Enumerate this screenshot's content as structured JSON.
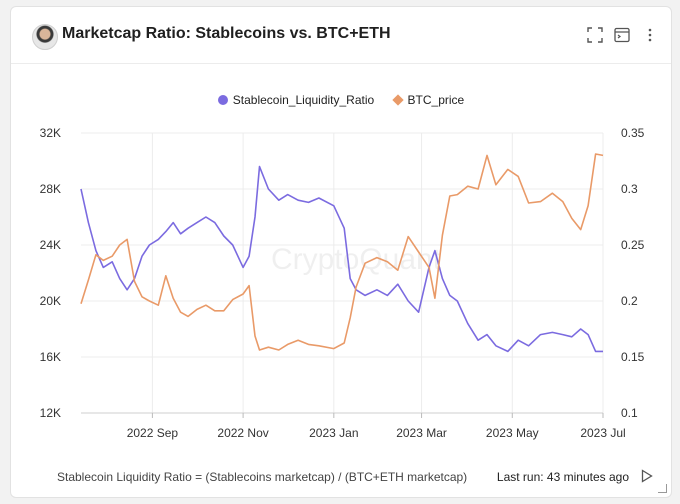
{
  "header": {
    "title": "Marketcap Ratio: Stablecoins vs. BTC+ETH"
  },
  "footer": {
    "note": "Stablecoin Liquidity Ratio = (Stablecoins marketcap) / (BTC+ETH marketcap)",
    "last_run": "Last run: 43 minutes ago"
  },
  "watermark": "CryptoQuant",
  "colors": {
    "ratio": "#7b6be0",
    "btc": "#e99a68"
  },
  "icons": [
    "avatar",
    "fullscreen-icon",
    "console-icon",
    "more-icon",
    "play-icon"
  ],
  "chart_data": {
    "type": "line",
    "legend_position": "top",
    "grid": true,
    "x_ticks": [
      "2022 Sep",
      "2022 Nov",
      "2023 Jan",
      "2023 Mar",
      "2023 May",
      "2023 Jul"
    ],
    "y_left": {
      "ticks": [
        "12K",
        "16K",
        "20K",
        "24K",
        "28K",
        "32K"
      ],
      "range": [
        12000,
        32000
      ]
    },
    "y_right": {
      "ticks": [
        "0.1",
        "0.15",
        "0.2",
        "0.25",
        "0.3",
        "0.35"
      ],
      "range": [
        0.1,
        0.35
      ]
    },
    "x_range": [
      "2022-07-15",
      "2023-07-01"
    ],
    "series": [
      {
        "name": "Stablecoin_Liquidity_Ratio",
        "axis": "right",
        "x": [
          "2022-07-15",
          "2022-07-20",
          "2022-07-25",
          "2022-07-30",
          "2022-08-05",
          "2022-08-10",
          "2022-08-15",
          "2022-08-20",
          "2022-08-25",
          "2022-08-30",
          "2022-09-05",
          "2022-09-10",
          "2022-09-15",
          "2022-09-20",
          "2022-09-25",
          "2022-10-01",
          "2022-10-07",
          "2022-10-13",
          "2022-10-19",
          "2022-10-25",
          "2022-11-01",
          "2022-11-05",
          "2022-11-09",
          "2022-11-12",
          "2022-11-18",
          "2022-11-25",
          "2022-12-01",
          "2022-12-08",
          "2022-12-15",
          "2022-12-22",
          "2023-01-01",
          "2023-01-08",
          "2023-01-12",
          "2023-01-16",
          "2023-01-22",
          "2023-01-30",
          "2023-02-06",
          "2023-02-13",
          "2023-02-20",
          "2023-02-27",
          "2023-03-06",
          "2023-03-10",
          "2023-03-15",
          "2023-03-20",
          "2023-03-25",
          "2023-04-01",
          "2023-04-08",
          "2023-04-14",
          "2023-04-20",
          "2023-04-28",
          "2023-05-05",
          "2023-05-12",
          "2023-05-20",
          "2023-05-28",
          "2023-06-04",
          "2023-06-10",
          "2023-06-16",
          "2023-06-21",
          "2023-06-26",
          "2023-07-01"
        ],
        "values": [
          0.3,
          0.27,
          0.245,
          0.23,
          0.235,
          0.22,
          0.21,
          0.22,
          0.24,
          0.25,
          0.255,
          0.262,
          0.27,
          0.26,
          0.265,
          0.27,
          0.275,
          0.27,
          0.258,
          0.25,
          0.23,
          0.24,
          0.275,
          0.32,
          0.3,
          0.29,
          0.295,
          0.29,
          0.288,
          0.292,
          0.285,
          0.265,
          0.22,
          0.21,
          0.205,
          0.21,
          0.205,
          0.215,
          0.2,
          0.19,
          0.23,
          0.245,
          0.22,
          0.205,
          0.2,
          0.18,
          0.165,
          0.17,
          0.16,
          0.155,
          0.165,
          0.16,
          0.17,
          0.172,
          0.17,
          0.168,
          0.175,
          0.17,
          0.155,
          0.155
        ]
      },
      {
        "name": "BTC_price",
        "axis": "left",
        "x": [
          "2022-07-15",
          "2022-07-20",
          "2022-07-25",
          "2022-07-30",
          "2022-08-05",
          "2022-08-10",
          "2022-08-15",
          "2022-08-20",
          "2022-08-25",
          "2022-08-30",
          "2022-09-05",
          "2022-09-10",
          "2022-09-15",
          "2022-09-20",
          "2022-09-25",
          "2022-10-01",
          "2022-10-07",
          "2022-10-13",
          "2022-10-19",
          "2022-10-25",
          "2022-11-01",
          "2022-11-05",
          "2022-11-09",
          "2022-11-12",
          "2022-11-18",
          "2022-11-25",
          "2022-12-01",
          "2022-12-08",
          "2022-12-15",
          "2022-12-22",
          "2023-01-01",
          "2023-01-08",
          "2023-01-12",
          "2023-01-16",
          "2023-01-22",
          "2023-01-30",
          "2023-02-06",
          "2023-02-13",
          "2023-02-20",
          "2023-02-27",
          "2023-03-06",
          "2023-03-10",
          "2023-03-15",
          "2023-03-20",
          "2023-03-25",
          "2023-04-01",
          "2023-04-08",
          "2023-04-14",
          "2023-04-20",
          "2023-04-28",
          "2023-05-05",
          "2023-05-12",
          "2023-05-20",
          "2023-05-28",
          "2023-06-04",
          "2023-06-10",
          "2023-06-16",
          "2023-06-21",
          "2023-06-26",
          "2023-07-01"
        ],
        "values": [
          19800,
          21500,
          23300,
          22900,
          23200,
          24000,
          24400,
          21400,
          20300,
          20000,
          19700,
          21800,
          20200,
          19200,
          18900,
          19400,
          19700,
          19300,
          19300,
          20100,
          20500,
          21100,
          17500,
          16500,
          16700,
          16500,
          16900,
          17200,
          16900,
          16800,
          16600,
          17000,
          18800,
          21000,
          22700,
          23100,
          22800,
          22200,
          24600,
          23500,
          22400,
          20200,
          24700,
          27500,
          27600,
          28200,
          28000,
          30400,
          28300,
          29400,
          28900,
          27000,
          27100,
          27700,
          27100,
          25900,
          25100,
          26800,
          30500,
          30400
        ]
      }
    ]
  }
}
